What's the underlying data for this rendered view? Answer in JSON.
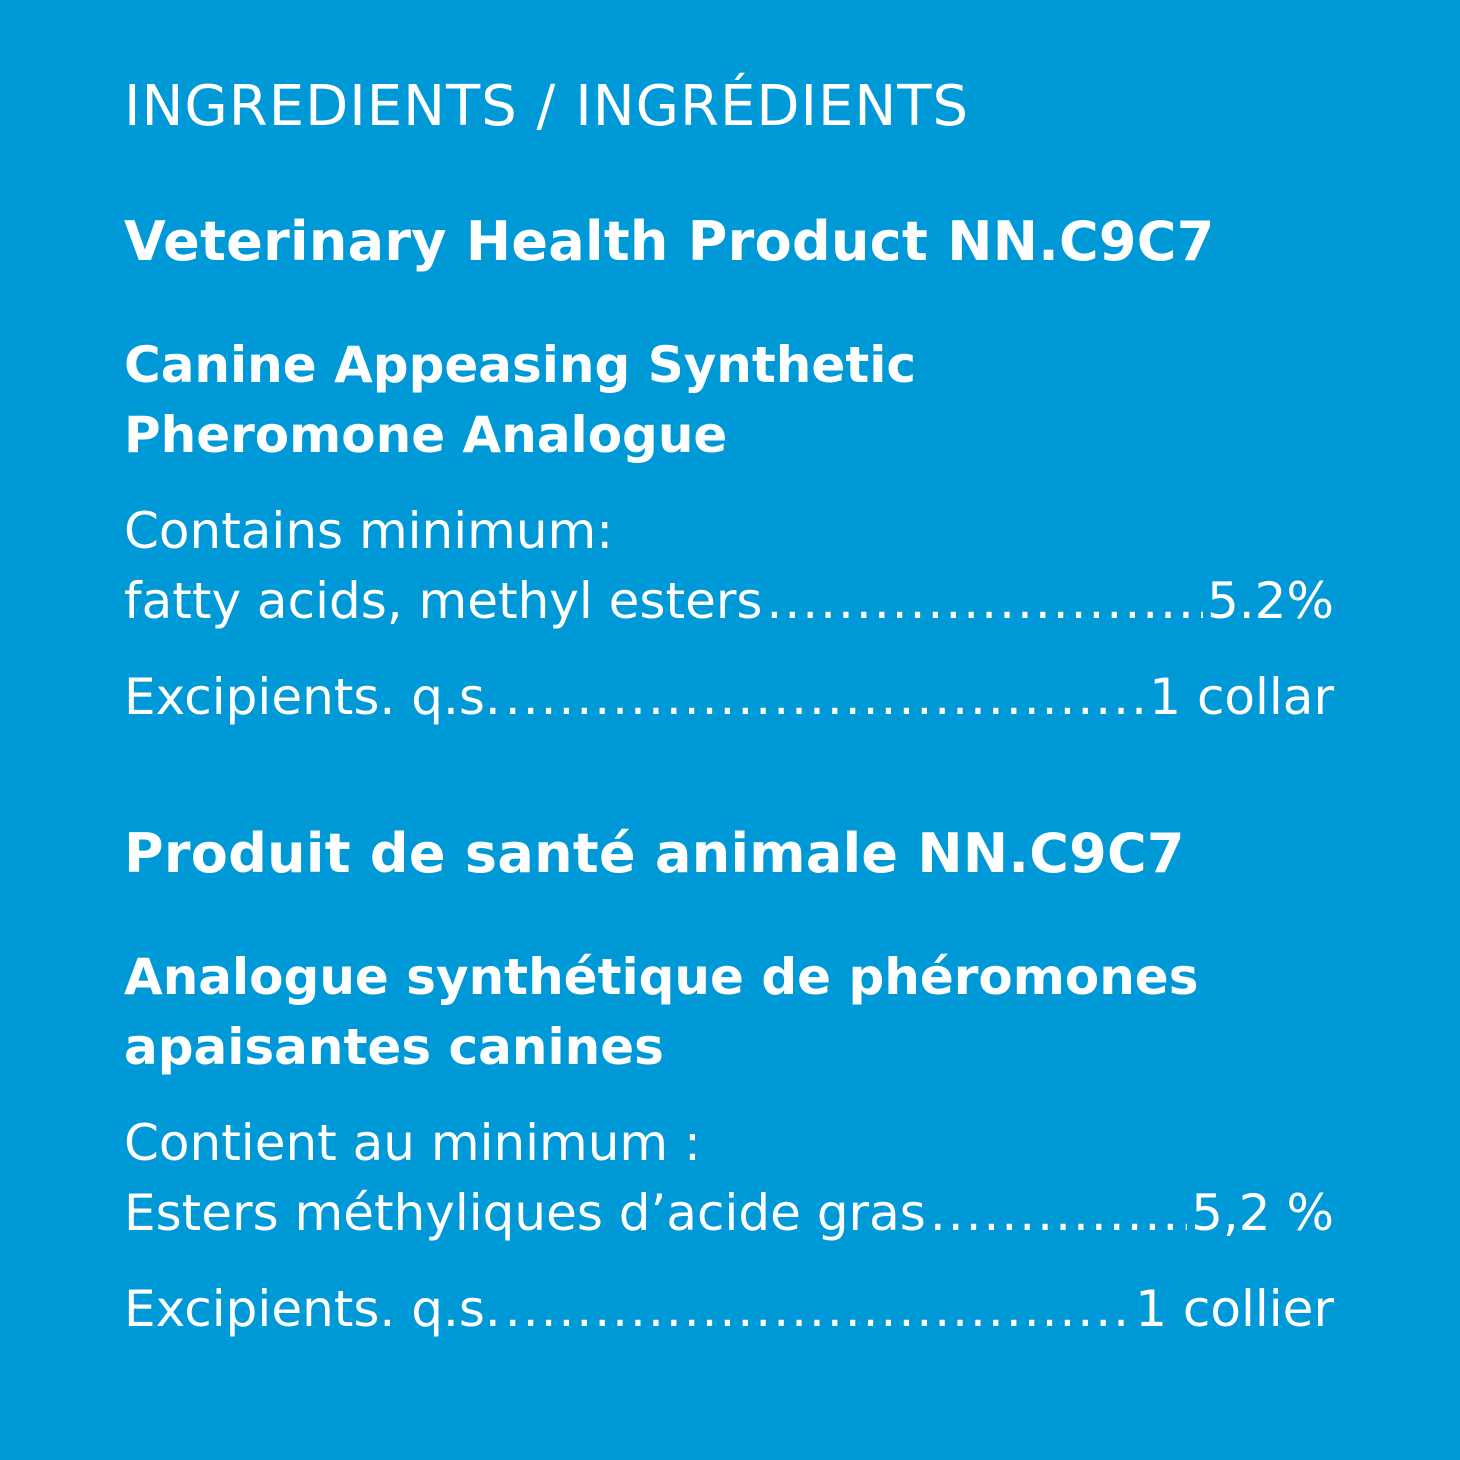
{
  "header": "INGREDIENTS / INGRÉDIENTS",
  "colors": {
    "background": "#0099d8",
    "text": "#ffffff"
  },
  "english": {
    "title": "Veterinary Health Product NN.C9C7",
    "subtitle_line1": "Canine Appeasing Synthetic",
    "subtitle_line2": "Pheromone Analogue",
    "contains": "Contains minimum:",
    "ingredient_label": "fatty acids, methyl esters",
    "ingredient_value": "5.2%",
    "excipients_label": "Excipients. q.s.",
    "excipients_value": "1 collar"
  },
  "french": {
    "title": "Produit de santé animale NN.C9C7",
    "subtitle_line1": "Analogue synthétique de phéromones",
    "subtitle_line2": "apaisantes canines",
    "contains": "Contient au minimum :",
    "ingredient_label": "Esters méthyliques d’acide gras",
    "ingredient_value": "5,2 %",
    "excipients_label": "Excipients. q.s.",
    "excipients_value": "1 collier"
  }
}
